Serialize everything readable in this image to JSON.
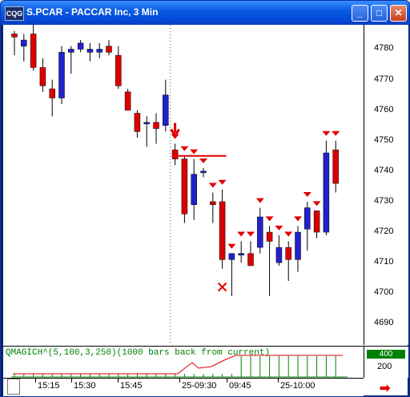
{
  "window": {
    "title": "S.PCAR - PACCAR Inc, 3 Min",
    "app_icon_text": "CQG",
    "minimize_glyph": "_",
    "maximize_glyph": "□",
    "close_glyph": "✕"
  },
  "price_axis": [
    "4780",
    "4770",
    "4760",
    "4750",
    "4740",
    "4730",
    "4720",
    "4710",
    "4700",
    "4690"
  ],
  "time_axis": [
    "15:15",
    "15:30",
    "15:45",
    "25-09:30",
    "09:45",
    "25-10:00"
  ],
  "indicator": {
    "title": "QMAGICH^(5,100,3,250)(1000 bars back from current)",
    "badge_value": "400",
    "axis_value": "200"
  },
  "colors": {
    "up": "#2222CC",
    "down": "#DD0000",
    "marker": "#E00000",
    "indicator": "#008000"
  },
  "chart_data": {
    "type": "candlestick",
    "ylim": [
      4683,
      4788
    ],
    "candles": [
      {
        "o": 4785,
        "h": 4786,
        "l": 4778,
        "c": 4784
      },
      {
        "o": 4781,
        "h": 4785,
        "l": 4776,
        "c": 4783
      },
      {
        "o": 4785,
        "h": 4788,
        "l": 4773,
        "c": 4774
      },
      {
        "o": 4774,
        "h": 4777,
        "l": 4766,
        "c": 4768
      },
      {
        "o": 4767,
        "h": 4770,
        "l": 4758,
        "c": 4764
      },
      {
        "o": 4764,
        "h": 4781,
        "l": 4762,
        "c": 4779
      },
      {
        "o": 4779,
        "h": 4781,
        "l": 4772,
        "c": 4780
      },
      {
        "o": 4780,
        "h": 4783,
        "l": 4779,
        "c": 4782
      },
      {
        "o": 4779,
        "h": 4782,
        "l": 4776,
        "c": 4780
      },
      {
        "o": 4779,
        "h": 4782,
        "l": 4777,
        "c": 4780
      },
      {
        "o": 4781,
        "h": 4783,
        "l": 4778,
        "c": 4779
      },
      {
        "o": 4778,
        "h": 4781,
        "l": 4767,
        "c": 4768
      },
      {
        "o": 4766,
        "h": 4767,
        "l": 4760,
        "c": 4760
      },
      {
        "o": 4759,
        "h": 4760,
        "l": 4751,
        "c": 4753
      },
      {
        "o": 4756,
        "h": 4758,
        "l": 4748,
        "c": 4756
      },
      {
        "o": 4756,
        "h": 4759,
        "l": 4749,
        "c": 4754
      },
      {
        "o": 4755,
        "h": 4770,
        "l": 4753,
        "c": 4765
      },
      {
        "o": 4747,
        "h": 4749,
        "l": 4742,
        "c": 4744
      },
      {
        "o": 4744,
        "h": 4745,
        "l": 4723,
        "c": 4726
      },
      {
        "o": 4729,
        "h": 4744,
        "l": 4724,
        "c": 4739
      },
      {
        "o": 4740,
        "h": 4741,
        "l": 4738,
        "c": 4740
      },
      {
        "o": 4730,
        "h": 4733,
        "l": 4723,
        "c": 4729
      },
      {
        "o": 4730,
        "h": 4734,
        "l": 4708,
        "c": 4711
      },
      {
        "o": 4711,
        "h": 4713,
        "l": 4699,
        "c": 4713
      },
      {
        "o": 4713,
        "h": 4717,
        "l": 4710,
        "c": 4713
      },
      {
        "o": 4713,
        "h": 4717,
        "l": 4709,
        "c": 4709
      },
      {
        "o": 4715,
        "h": 4728,
        "l": 4713,
        "c": 4725
      },
      {
        "o": 4720,
        "h": 4722,
        "l": 4699,
        "c": 4717
      },
      {
        "o": 4710,
        "h": 4719,
        "l": 4709,
        "c": 4715
      },
      {
        "o": 4715,
        "h": 4717,
        "l": 4704,
        "c": 4711
      },
      {
        "o": 4711,
        "h": 4722,
        "l": 4707,
        "c": 4720
      },
      {
        "o": 4721,
        "h": 4730,
        "l": 4714,
        "c": 4728
      },
      {
        "o": 4727,
        "h": 4727,
        "l": 4718,
        "c": 4720
      },
      {
        "o": 4720,
        "h": 4750,
        "l": 4719,
        "c": 4746
      },
      {
        "o": 4747,
        "h": 4750,
        "l": 4733,
        "c": 4736
      }
    ],
    "sell_markers": [
      17,
      18,
      19,
      20,
      21,
      22,
      23,
      24,
      25,
      26,
      27,
      28,
      29,
      30,
      31,
      32,
      33,
      34
    ],
    "entry_arrow": 17,
    "stop_line": {
      "value": 4745,
      "from": 17,
      "to": 22
    },
    "cross_marker": {
      "bar": 22,
      "value": 4702
    },
    "session_start": 16
  }
}
